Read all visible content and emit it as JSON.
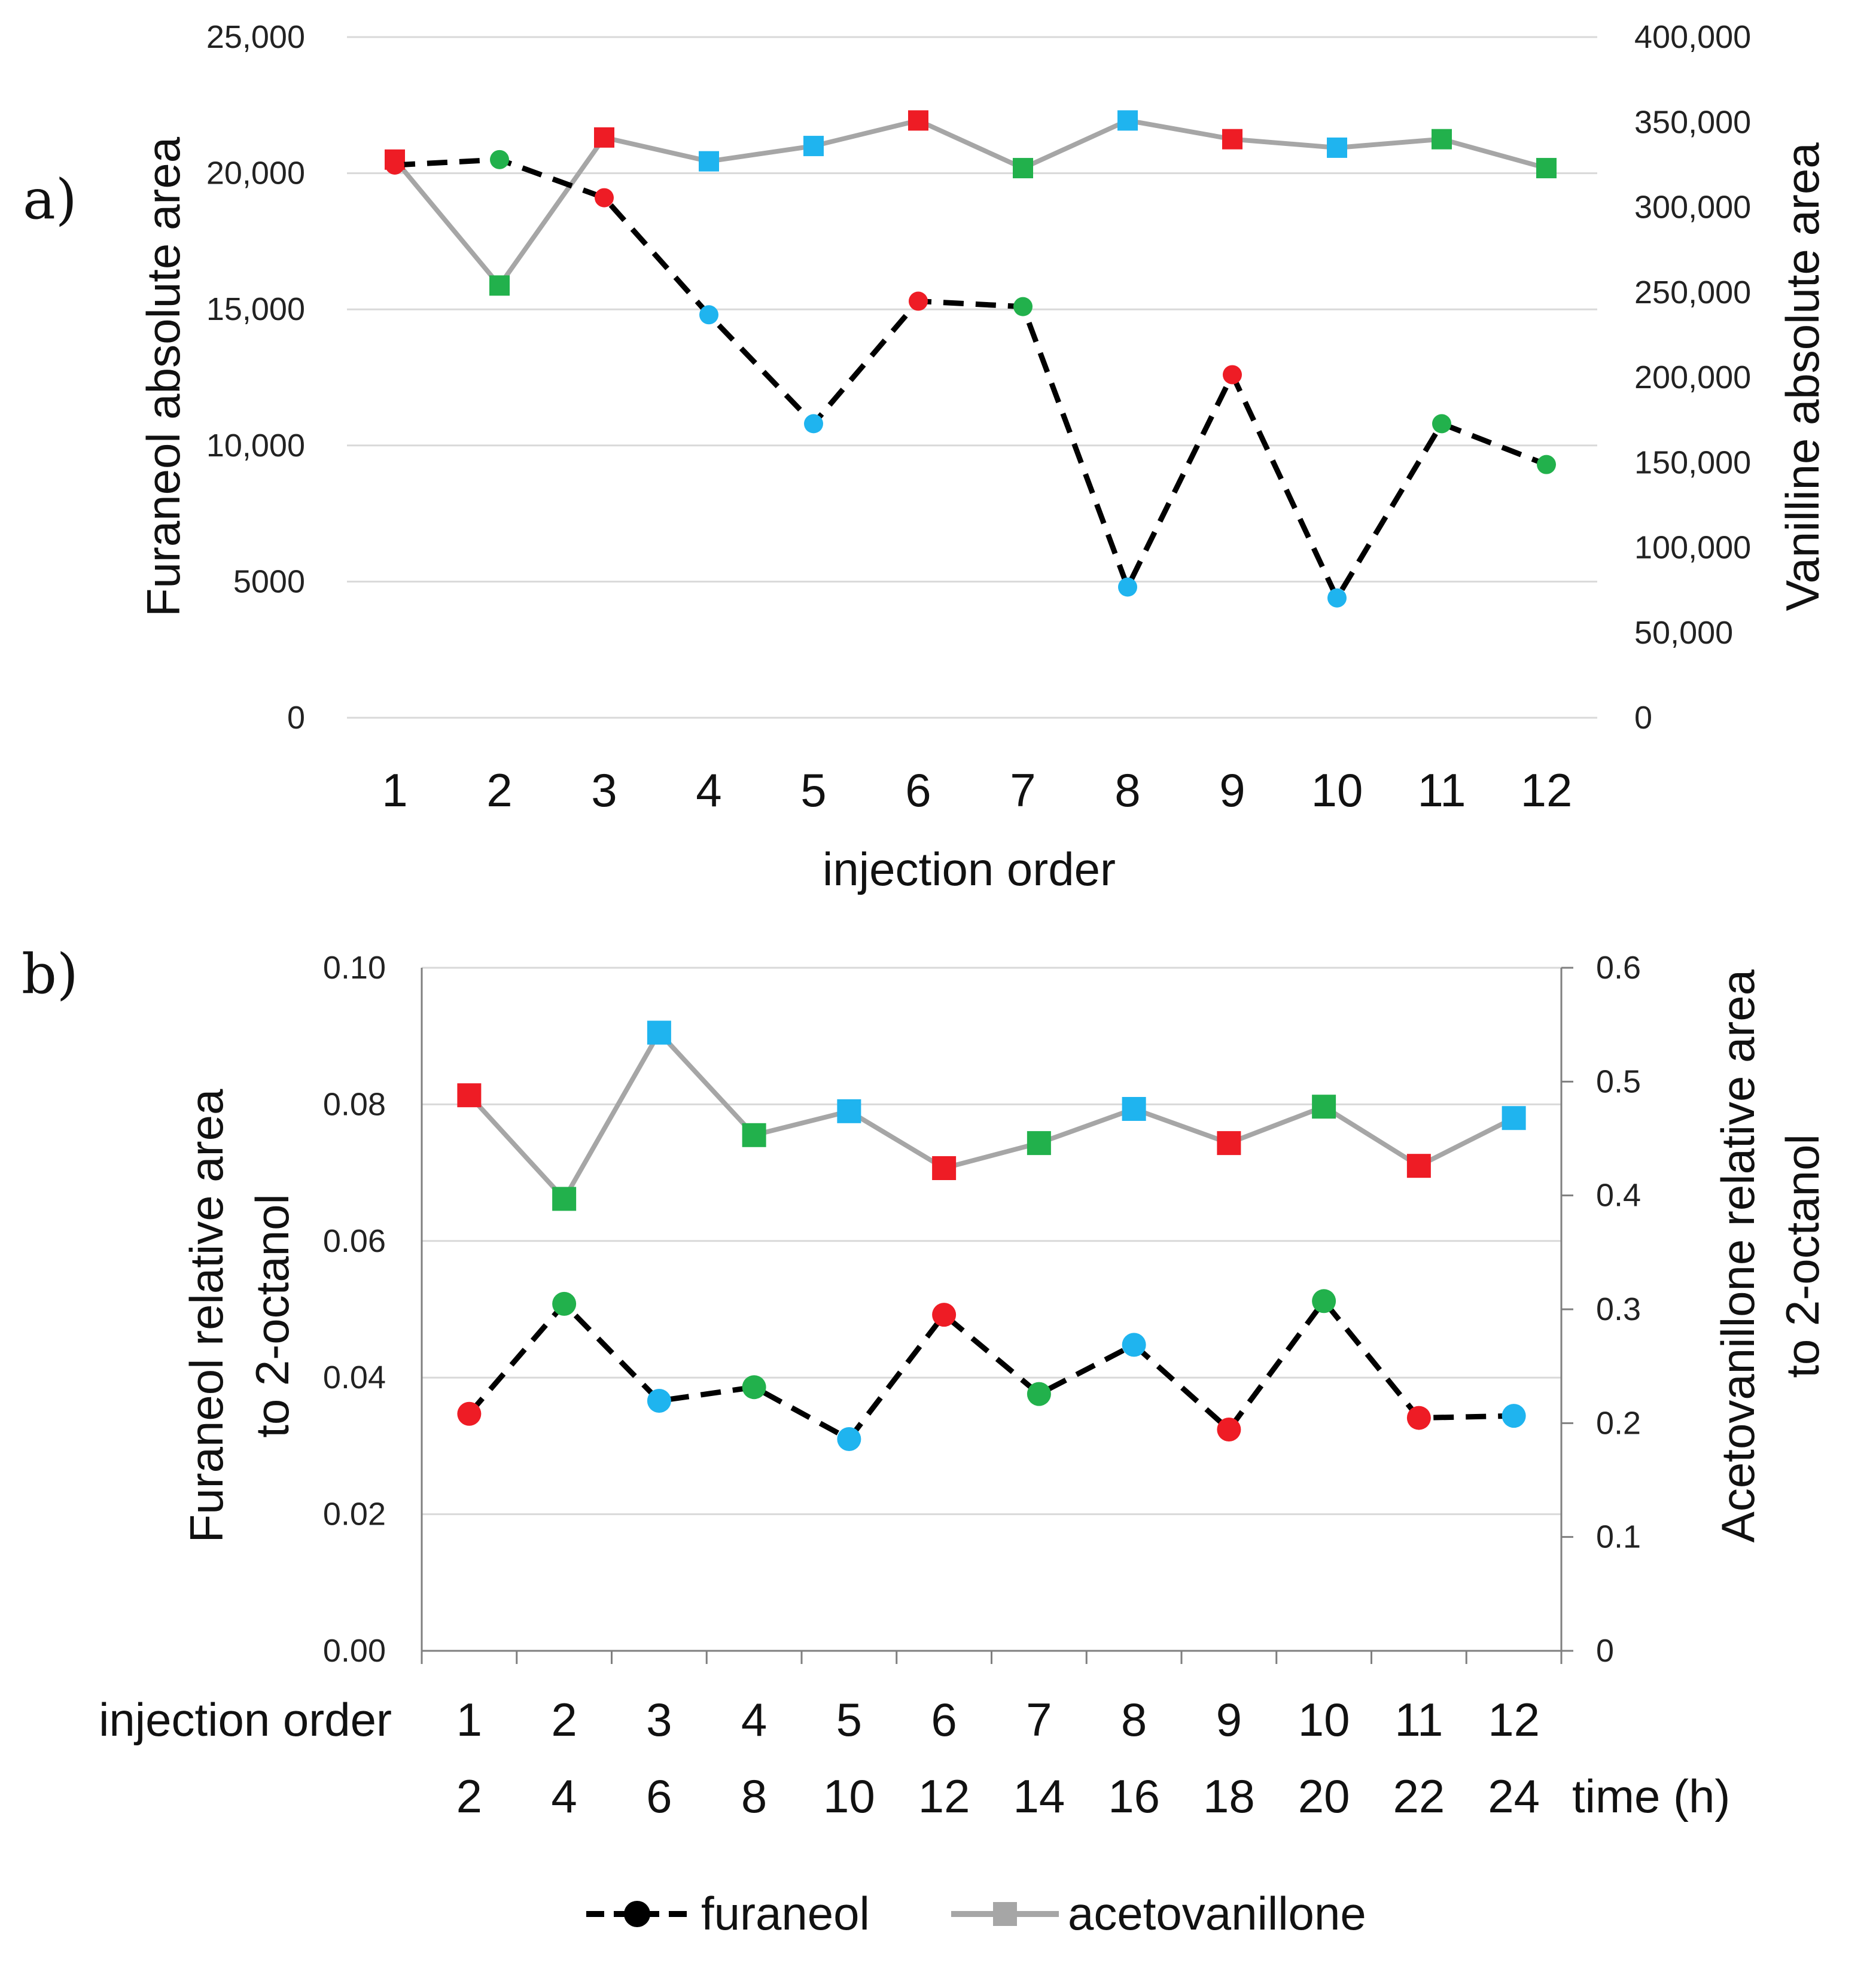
{
  "chart_data": [
    {
      "type": "line",
      "panel_label": "a)",
      "xlabel": "injection order",
      "categories": [
        "1",
        "2",
        "3",
        "4",
        "5",
        "6",
        "7",
        "8",
        "9",
        "10",
        "11",
        "12"
      ],
      "ylabel_left": "Furaneol absolute area",
      "ylabel_right": "Vanilline absolute area",
      "ylim_left": [
        0,
        25000
      ],
      "ylim_right": [
        0,
        400000
      ],
      "yticks_left": [
        "0",
        "5000",
        "10,000",
        "15,000",
        "20,000",
        "25,000"
      ],
      "yticks_right": [
        "0",
        "50,000",
        "100,000",
        "150,000",
        "200,000",
        "250,000",
        "300,000",
        "350,000",
        "400,000"
      ],
      "grid": true,
      "series": [
        {
          "name": "furaneol",
          "axis": "left",
          "style": "dashed-black-circle",
          "values": [
            20300,
            20500,
            19100,
            14800,
            10800,
            15300,
            15100,
            4800,
            12600,
            4400,
            10800,
            9300
          ]
        },
        {
          "name": "vanilline",
          "axis": "right",
          "style": "solid-gray-square",
          "values": [
            328000,
            254000,
            341000,
            327000,
            336000,
            351000,
            323000,
            351000,
            340000,
            335000,
            340000,
            323000
          ]
        }
      ],
      "marker_colors": [
        "#ee1c25",
        "#22b14c",
        "#ee1c25",
        "#1fb4ef",
        "#1fb4ef",
        "#ee1c25",
        "#22b14c",
        "#1fb4ef",
        "#ee1c25",
        "#1fb4ef",
        "#22b14c",
        "#22b14c"
      ],
      "square_colors": [
        "#ee1c25",
        "#22b14c",
        "#ee1c25",
        "#1fb4ef",
        "#1fb4ef",
        "#ee1c25",
        "#22b14c",
        "#1fb4ef",
        "#ee1c25",
        "#1fb4ef",
        "#22b14c",
        "#22b14c"
      ]
    },
    {
      "type": "line",
      "panel_label": "b)",
      "xlabel": "injection order",
      "xlabel2": "time (h)",
      "categories": [
        "1",
        "2",
        "3",
        "4",
        "5",
        "6",
        "7",
        "8",
        "9",
        "10",
        "11",
        "12"
      ],
      "categories2": [
        "2",
        "4",
        "6",
        "8",
        "10",
        "12",
        "14",
        "16",
        "18",
        "20",
        "22",
        "24"
      ],
      "ylabel_left_1": "Furaneol relative area",
      "ylabel_left_2": "to 2-octanol",
      "ylabel_right_1": "Acetovanillone relative area",
      "ylabel_right_2": "to 2-octanol",
      "ylim_left": [
        0,
        0.1
      ],
      "ylim_right": [
        0,
        0.6
      ],
      "yticks_left": [
        "0.00",
        "0.02",
        "0.04",
        "0.06",
        "0.08",
        "0.10"
      ],
      "yticks_right": [
        "0",
        "0.1",
        "0.2",
        "0.3",
        "0.4",
        "0.5",
        "0.6"
      ],
      "grid": true,
      "series": [
        {
          "name": "furaneol",
          "axis": "left",
          "style": "dashed-black-circle",
          "values": [
            0.0347,
            0.0508,
            0.0366,
            0.0386,
            0.031,
            0.0492,
            0.0376,
            0.0448,
            0.0324,
            0.0512,
            0.0341,
            0.0344
          ]
        },
        {
          "name": "acetovanillone",
          "axis": "right",
          "style": "solid-gray-square",
          "values": [
            0.488,
            0.397,
            0.543,
            0.453,
            0.474,
            0.424,
            0.446,
            0.476,
            0.446,
            0.478,
            0.426,
            0.468
          ]
        }
      ],
      "marker_colors": [
        "#ee1c25",
        "#22b14c",
        "#1fb4ef",
        "#22b14c",
        "#1fb4ef",
        "#ee1c25",
        "#22b14c",
        "#1fb4ef",
        "#ee1c25",
        "#22b14c",
        "#ee1c25",
        "#1fb4ef"
      ],
      "square_colors": [
        "#ee1c25",
        "#22b14c",
        "#1fb4ef",
        "#22b14c",
        "#1fb4ef",
        "#ee1c25",
        "#22b14c",
        "#1fb4ef",
        "#ee1c25",
        "#22b14c",
        "#ee1c25",
        "#1fb4ef"
      ]
    }
  ],
  "legend": {
    "items": [
      {
        "label": "furaneol",
        "style": "dashed-black-circle"
      },
      {
        "label": "acetovanillone",
        "style": "solid-gray-square"
      }
    ]
  },
  "colors": {
    "line_furaneol": "#000000",
    "line_acetovanillone": "#a6a6a6",
    "grid": "#d9d9d9"
  }
}
